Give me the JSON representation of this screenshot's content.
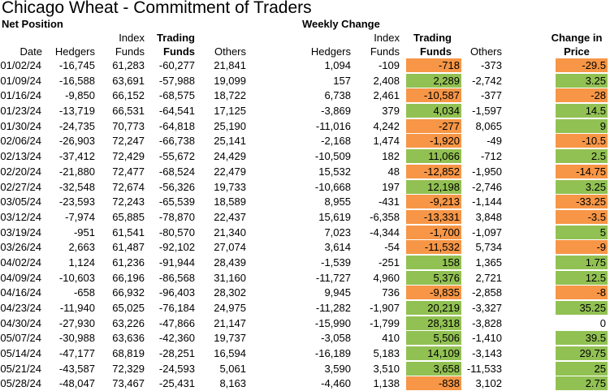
{
  "title": "Chicago Wheat - Commitment of Traders",
  "sections": {
    "net": "Net Position",
    "weekly": "Weekly Change"
  },
  "headers": {
    "date": "Date",
    "net_hedgers": "Hedgers",
    "net_index_1": "Index",
    "net_index_2": "Funds",
    "net_trading_1": "Trading",
    "net_trading_2": "Funds",
    "net_others": "Others",
    "wk_hedgers": "Hedgers",
    "wk_index_1": "Index",
    "wk_index_2": "Funds",
    "wk_trading_1": "Trading",
    "wk_trading_2": "Funds",
    "wk_others": "Others",
    "price_1": "Change in",
    "price_2": "Price"
  },
  "colors": {
    "positive": "#92c153",
    "negative": "#f79646"
  },
  "chart_data": {
    "type": "table",
    "title": "Chicago Wheat - Commitment of Traders",
    "columns": [
      "Date",
      "Hedgers",
      "Index Funds",
      "Trading Funds",
      "Others",
      "Hedgers (weekly)",
      "Index Funds (weekly)",
      "Trading Funds (weekly)",
      "Others (weekly)",
      "Change in Price"
    ],
    "rows": [
      [
        "01/02/24",
        "-16,745",
        "61,283",
        "-60,277",
        "21,841",
        "1,094",
        "-109",
        "-718",
        "-373",
        "-29.5"
      ],
      [
        "01/09/24",
        "-16,588",
        "63,691",
        "-57,988",
        "19,099",
        "157",
        "2,408",
        "2,289",
        "-2,742",
        "3.25"
      ],
      [
        "01/16/24",
        "-9,850",
        "66,152",
        "-68,575",
        "18,722",
        "6,738",
        "2,461",
        "-10,587",
        "-377",
        "-28"
      ],
      [
        "01/23/24",
        "-13,719",
        "66,531",
        "-64,541",
        "17,125",
        "-3,869",
        "379",
        "4,034",
        "-1,597",
        "14.5"
      ],
      [
        "01/30/24",
        "-24,735",
        "70,773",
        "-64,818",
        "25,190",
        "-11,016",
        "4,242",
        "-277",
        "8,065",
        "9"
      ],
      [
        "02/06/24",
        "-26,903",
        "72,247",
        "-66,738",
        "25,141",
        "-2,168",
        "1,474",
        "-1,920",
        "-49",
        "-10.5"
      ],
      [
        "02/13/24",
        "-37,412",
        "72,429",
        "-55,672",
        "24,429",
        "-10,509",
        "182",
        "11,066",
        "-712",
        "2.5"
      ],
      [
        "02/20/24",
        "-21,880",
        "72,477",
        "-68,524",
        "22,479",
        "15,532",
        "48",
        "-12,852",
        "-1,950",
        "-14.75"
      ],
      [
        "02/27/24",
        "-32,548",
        "72,674",
        "-56,326",
        "19,733",
        "-10,668",
        "197",
        "12,198",
        "-2,746",
        "3.25"
      ],
      [
        "03/05/24",
        "-23,593",
        "72,243",
        "-65,539",
        "18,589",
        "8,955",
        "-431",
        "-9,213",
        "-1,144",
        "-33.25"
      ],
      [
        "03/12/24",
        "-7,974",
        "65,885",
        "-78,870",
        "22,437",
        "15,619",
        "-6,358",
        "-13,331",
        "3,848",
        "-3.5"
      ],
      [
        "03/19/24",
        "-951",
        "61,541",
        "-80,570",
        "21,340",
        "7,023",
        "-4,344",
        "-1,700",
        "-1,097",
        "5"
      ],
      [
        "03/26/24",
        "2,663",
        "61,487",
        "-92,102",
        "27,074",
        "3,614",
        "-54",
        "-11,532",
        "5,734",
        "-9"
      ],
      [
        "04/02/24",
        "1,124",
        "61,236",
        "-91,944",
        "28,439",
        "-1,539",
        "-251",
        "158",
        "1,365",
        "1.75"
      ],
      [
        "04/09/24",
        "-10,603",
        "66,196",
        "-86,568",
        "31,160",
        "-11,727",
        "4,960",
        "5,376",
        "2,721",
        "12.5"
      ],
      [
        "04/16/24",
        "-658",
        "66,932",
        "-96,403",
        "28,302",
        "9,945",
        "736",
        "-9,835",
        "-2,858",
        "-8"
      ],
      [
        "04/23/24",
        "-11,940",
        "65,025",
        "-76,184",
        "24,975",
        "-11,282",
        "-1,907",
        "20,219",
        "-3,327",
        "35.25"
      ],
      [
        "04/30/24",
        "-27,930",
        "63,226",
        "-47,866",
        "21,147",
        "-15,990",
        "-1,799",
        "28,318",
        "-3,828",
        "0"
      ],
      [
        "05/07/24",
        "-30,988",
        "63,636",
        "-42,360",
        "19,737",
        "-3,058",
        "410",
        "5,506",
        "-1,410",
        "39.5"
      ],
      [
        "05/14/24",
        "-47,177",
        "68,819",
        "-28,251",
        "16,594",
        "-16,189",
        "5,183",
        "14,109",
        "-3,143",
        "29.75"
      ],
      [
        "05/21/24",
        "-43,587",
        "72,329",
        "-24,593",
        "5,061",
        "3,590",
        "3,510",
        "3,658",
        "-11,533",
        "25"
      ],
      [
        "05/28/24",
        "-48,047",
        "73,467",
        "-25,431",
        "8,163",
        "-4,460",
        "1,138",
        "-838",
        "3,102",
        "2.75"
      ]
    ]
  }
}
